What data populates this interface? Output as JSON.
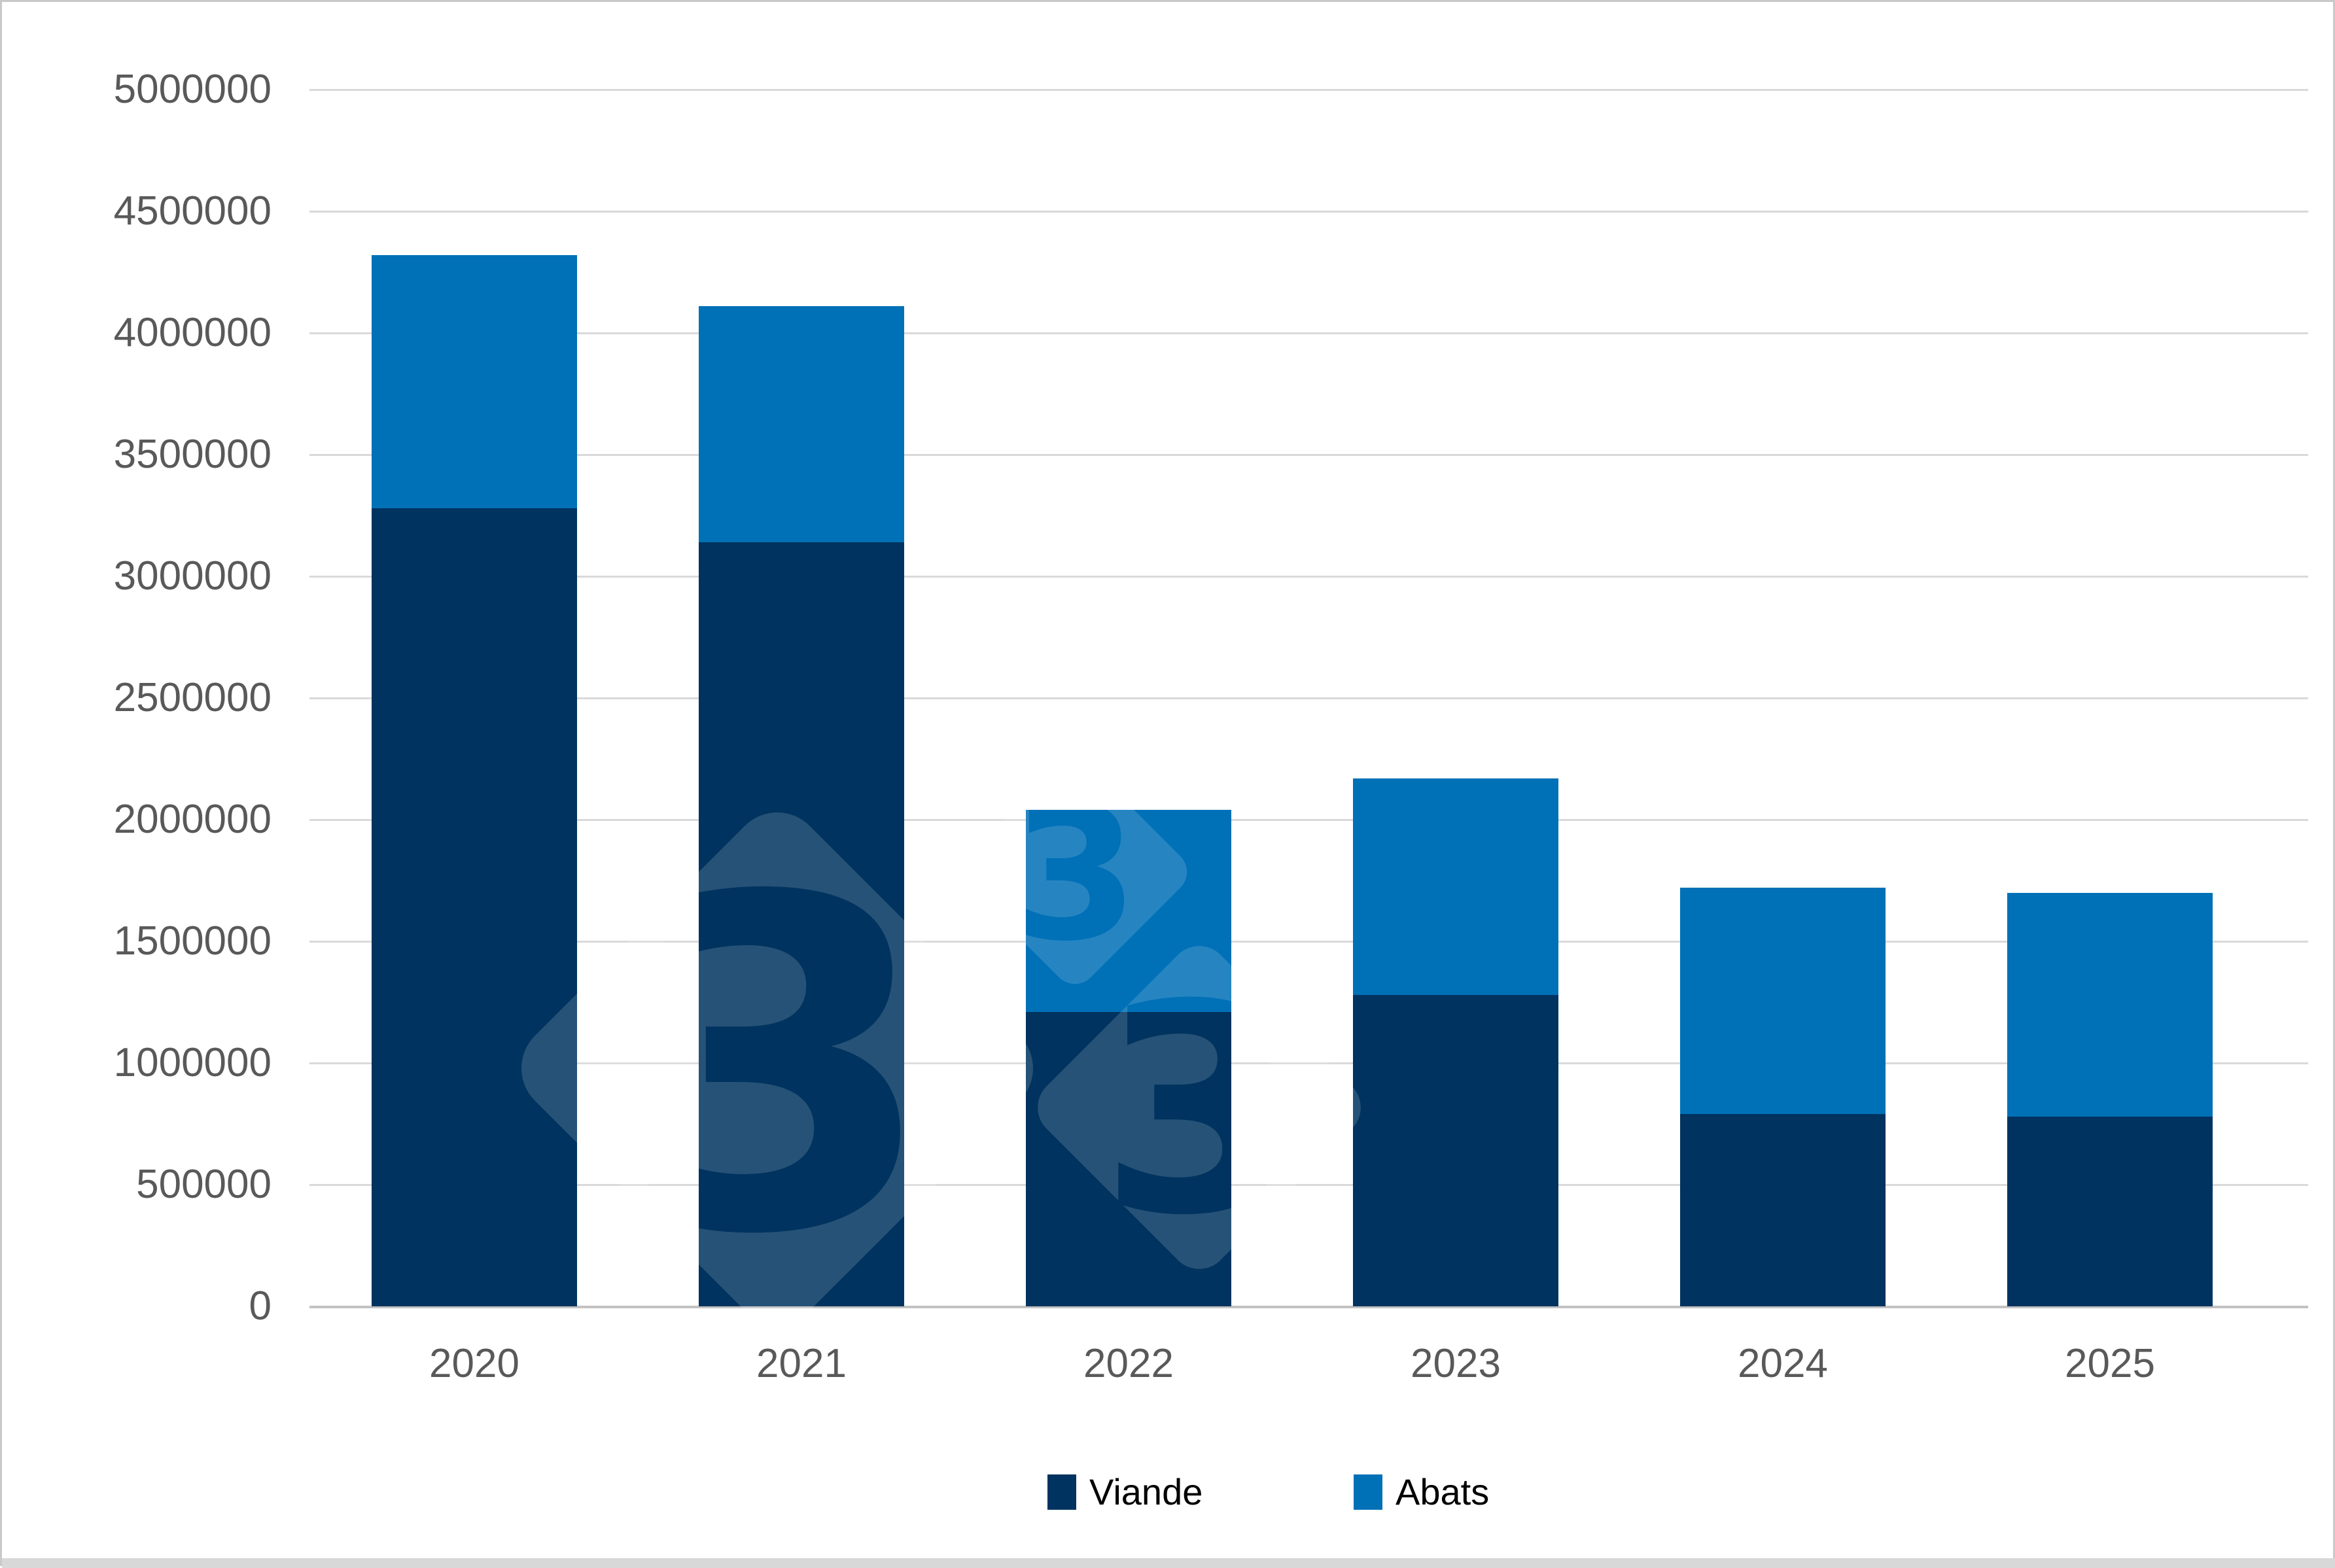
{
  "chart_data": {
    "type": "bar",
    "stacked": true,
    "title": "",
    "xlabel": "",
    "ylabel": "",
    "categories": [
      "2020",
      "2021",
      "2022",
      "2023",
      "2024",
      "2025"
    ],
    "series": [
      {
        "name": "Viande",
        "color": "#00335F",
        "values": [
          3280000,
          3140000,
          1210000,
          1280000,
          790000,
          780000
        ]
      },
      {
        "name": "Abats",
        "color": "#0070B7",
        "values": [
          1040000,
          970000,
          830000,
          890000,
          930000,
          920000
        ]
      }
    ],
    "totals": [
      4320000,
      4110000,
      2040000,
      2170000,
      1720000,
      1700000
    ],
    "ylim": [
      0,
      5000000
    ],
    "ytick_step": 500000,
    "ytick_labels": [
      "0",
      "500000",
      "1000000",
      "1500000",
      "2000000",
      "2500000",
      "3000000",
      "3500000",
      "4000000",
      "4500000",
      "5000000"
    ],
    "grid": true,
    "legend_position": "bottom"
  },
  "legend": {
    "items": [
      {
        "label": "Viande",
        "color": "#00335F"
      },
      {
        "label": "Abats",
        "color": "#0070B7"
      }
    ]
  },
  "watermark": {
    "glyph": "3",
    "opacity": "0.15",
    "color": "#ffffff"
  },
  "colors": {
    "background": "#ffffff",
    "border": "#c9c9c9",
    "gridline": "#d9d9d9",
    "baseline": "#c3c3c3",
    "axis_text": "#595959",
    "legend_text": "#000000",
    "bottom_strip": "#d8d8d8"
  }
}
